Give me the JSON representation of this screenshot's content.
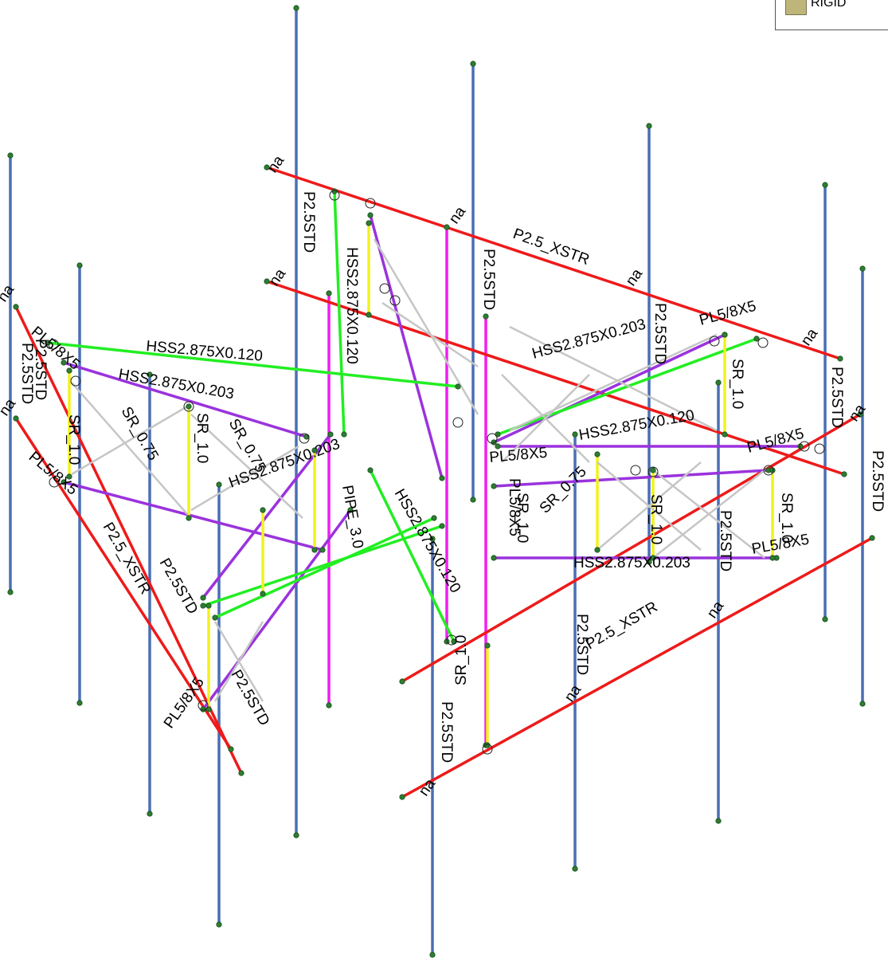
{
  "legend": {
    "label": "RIGID",
    "color": "#bdb57a"
  },
  "colors": {
    "pipe_vertical": "#4a6fb5",
    "horizontal": "#ee1a1a",
    "diagonal_green": "#22ee22",
    "hss_purple": "#9a33dd",
    "sr_yellow": "#f2f21c",
    "pipe_magenta": "#f01ef0",
    "sr_gray": "#c6c6c6",
    "node": "#2e7d32"
  },
  "labels": {
    "p25std": "P2.5STD",
    "p25xstr": "P2.5_XSTR",
    "hss120": "HSS2.875X0.120",
    "hss203": "HSS2.875X0.203",
    "pl": "PL5/8X5",
    "sr10": "SR_1.0",
    "sr075": "SR_0.75",
    "na": "na",
    "pipe": "PIPE_3.0",
    "hss_short": "HSS2.875X0.2"
  }
}
